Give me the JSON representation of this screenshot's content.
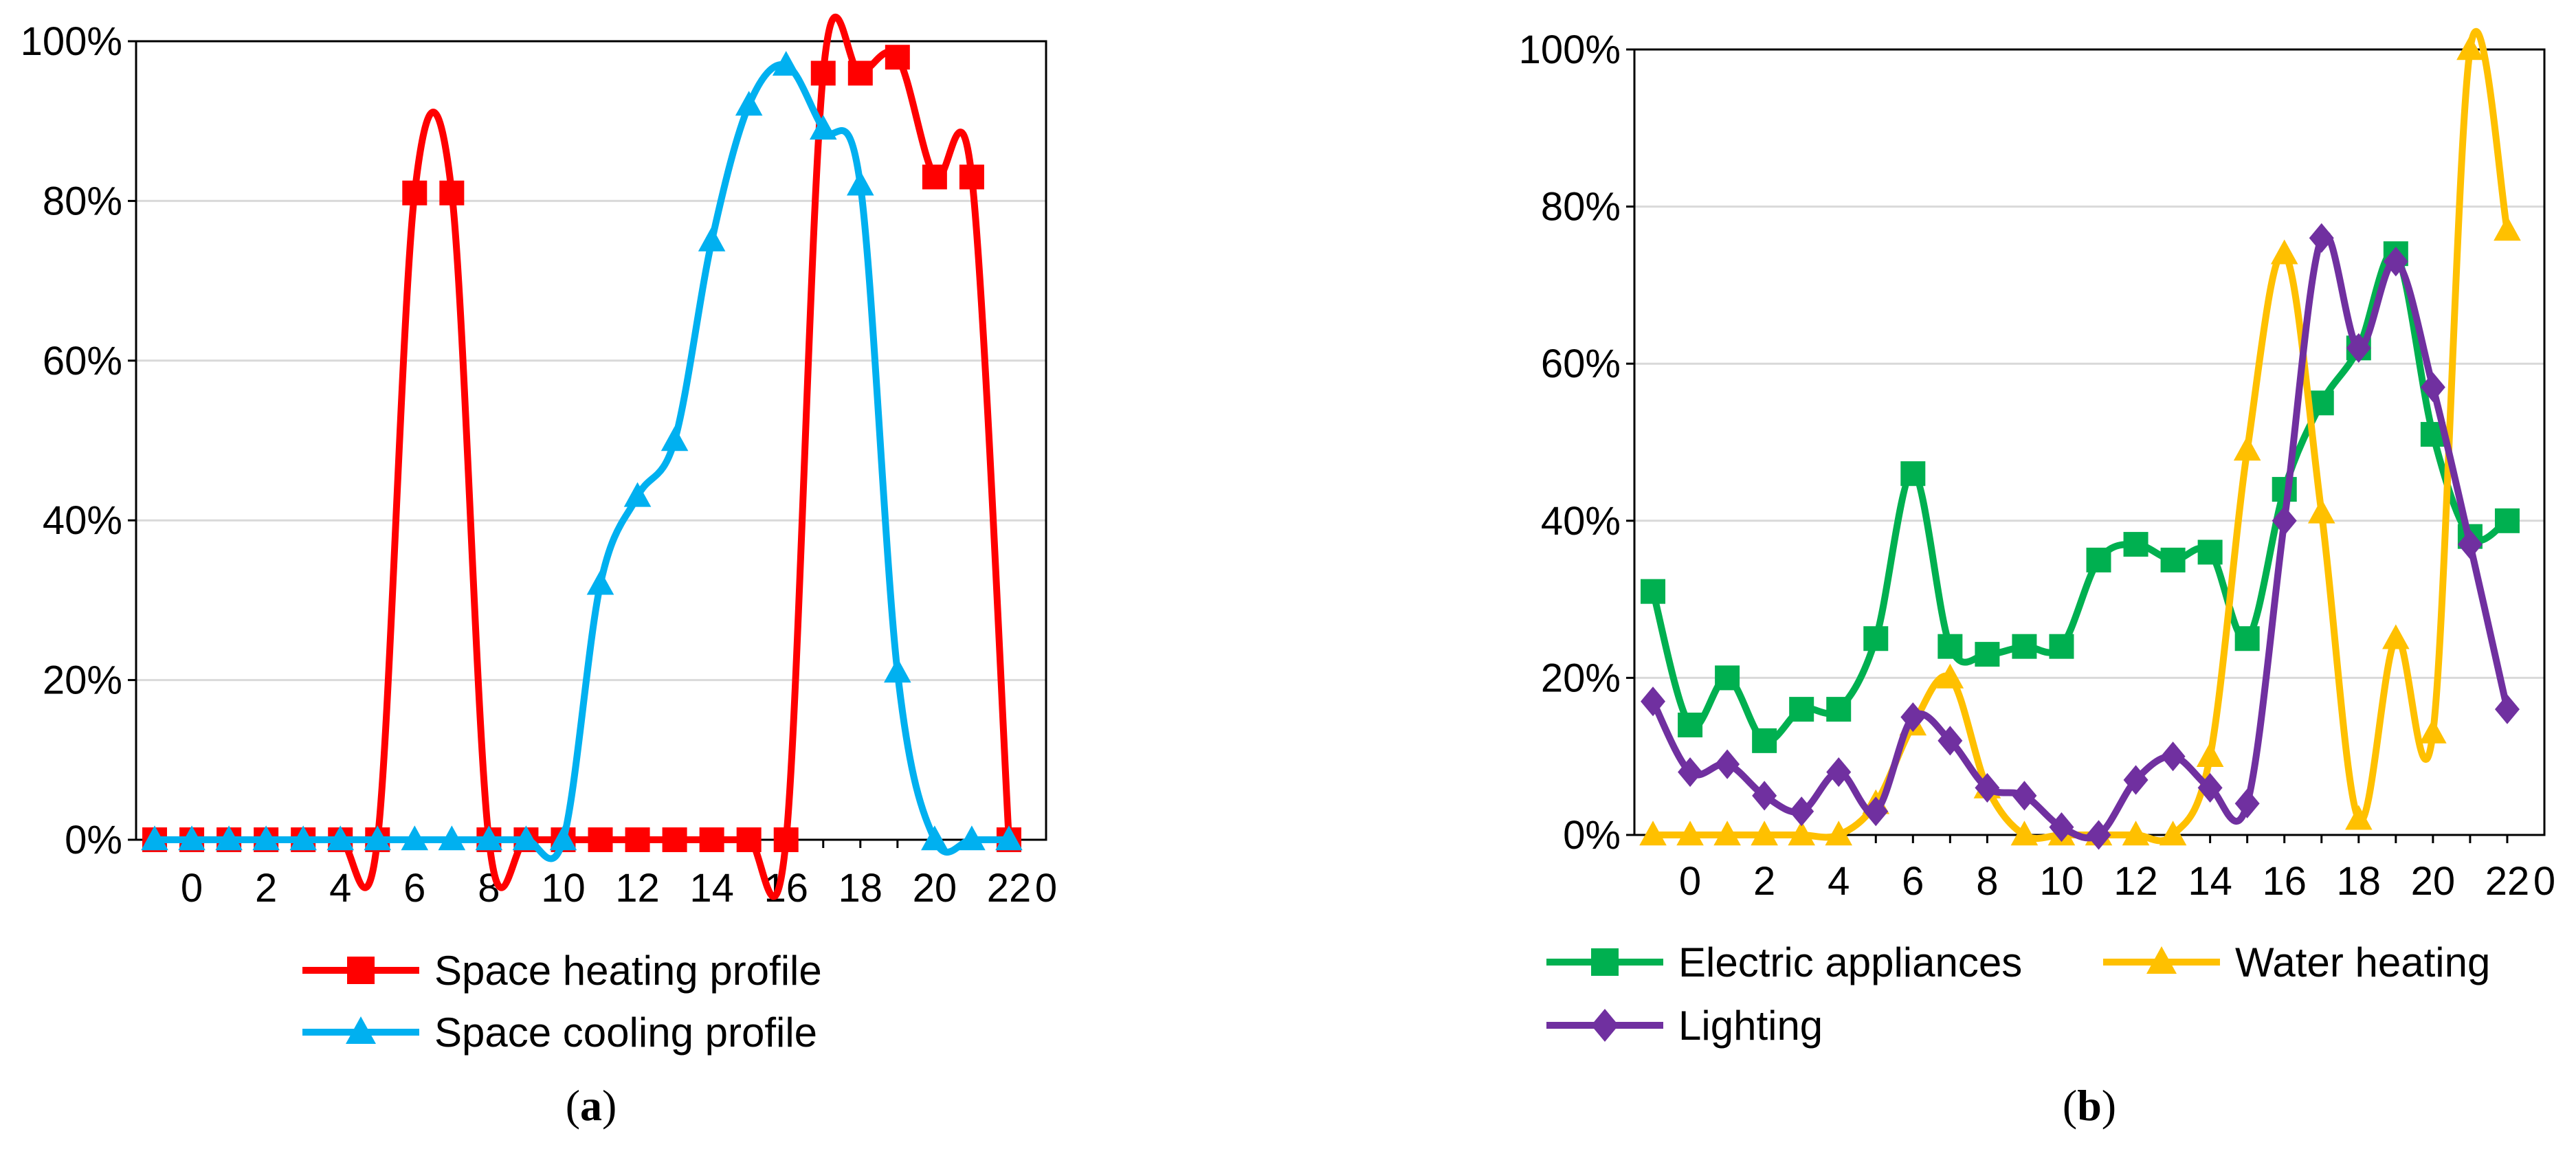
{
  "chart_data": [
    {
      "type": "line",
      "panel_label": {
        "open": "(",
        "letter": "a",
        "close": ")"
      },
      "x": [
        -1,
        0,
        1,
        2,
        3,
        4,
        5,
        6,
        7,
        8,
        9,
        10,
        11,
        12,
        13,
        14,
        15,
        16,
        17,
        18,
        19,
        20,
        21,
        22
      ],
      "x_tick_labels": [
        "0",
        "2",
        "4",
        "6",
        "8",
        "10",
        "12",
        "14",
        "16",
        "18",
        "20",
        "22",
        "0"
      ],
      "y_tick_labels": [
        "0%",
        "20%",
        "40%",
        "60%",
        "80%",
        "100%"
      ],
      "ylim": [
        0,
        100
      ],
      "grid": true,
      "legend_position": "bottom",
      "series": [
        {
          "name": "Space heating profile",
          "color": "#ff0000",
          "marker": "square",
          "values": [
            0,
            0,
            0,
            0,
            0,
            0,
            0,
            81,
            81,
            0,
            0,
            0,
            0,
            0,
            0,
            0,
            0,
            0,
            96,
            96,
            98,
            83,
            83,
            0
          ]
        },
        {
          "name": "Space cooling profile",
          "color": "#00b0f0",
          "marker": "triangle",
          "values": [
            0,
            0,
            0,
            0,
            0,
            0,
            0,
            0,
            0,
            0,
            0,
            0,
            32,
            43,
            50,
            75,
            92,
            97,
            89,
            82,
            21,
            0,
            0,
            0
          ]
        }
      ]
    },
    {
      "type": "line",
      "panel_label": {
        "open": "(",
        "letter": "b",
        "close": ")"
      },
      "x": [
        -1,
        0,
        1,
        2,
        3,
        4,
        5,
        6,
        7,
        8,
        9,
        10,
        11,
        12,
        13,
        14,
        15,
        16,
        17,
        18,
        19,
        20,
        21,
        22
      ],
      "x_tick_labels": [
        "0",
        "2",
        "4",
        "6",
        "8",
        "10",
        "12",
        "14",
        "16",
        "18",
        "20",
        "22",
        "0"
      ],
      "y_tick_labels": [
        "0%",
        "20%",
        "40%",
        "60%",
        "80%",
        "100%"
      ],
      "ylim": [
        0,
        100
      ],
      "grid": true,
      "legend_position": "bottom",
      "series": [
        {
          "name": "Electric appliances",
          "color": "#00b050",
          "marker": "square",
          "values": [
            31,
            14,
            20,
            12,
            16,
            16,
            25,
            46,
            24,
            23,
            24,
            24,
            35,
            37,
            35,
            36,
            25,
            44,
            55,
            62,
            74,
            51,
            38,
            40
          ]
        },
        {
          "name": "Water heating",
          "color": "#ffc000",
          "marker": "triangle",
          "values": [
            0,
            0,
            0,
            0,
            0,
            0,
            4,
            14,
            20,
            6,
            0,
            0,
            0,
            0,
            0,
            10,
            49,
            74,
            41,
            2,
            25,
            13,
            100,
            77
          ]
        },
        {
          "name": "Lighting",
          "color": "#7030a0",
          "marker": "diamond",
          "values": [
            17,
            8,
            9,
            5,
            3,
            8,
            3,
            15,
            12,
            6,
            5,
            1,
            0,
            7,
            10,
            6,
            4,
            40,
            76,
            62,
            73,
            57,
            37,
            16
          ]
        }
      ]
    }
  ]
}
